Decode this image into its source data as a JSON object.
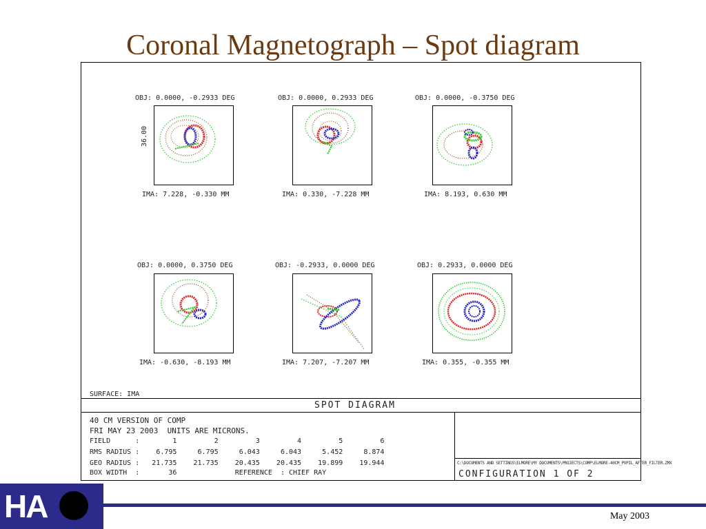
{
  "slide": {
    "title": "Coronal Magnetograph – Spot diagram",
    "footer_date": "May 2003",
    "logo": {
      "text": "HA",
      "icon": "sun-disk-icon",
      "bg_color": "#2c2a8a"
    }
  },
  "plots": [
    {
      "obj": "OBJ: 0.0000, -0.2933 DEG",
      "ima": "IMA: 7.228, -0.330 MM",
      "scale_label": "36.00"
    },
    {
      "obj": "OBJ: 0.0000, 0.2933 DEG",
      "ima": "IMA: 0.330, -7.228 MM"
    },
    {
      "obj": "OBJ: 0.0000, -0.3750 DEG",
      "ima": "IMA: 8.193, 0.630 MM"
    },
    {
      "obj": "OBJ: 0.0000, 0.3750 DEG",
      "ima": "IMA: -0.630, -8.193 MM"
    },
    {
      "obj": "OBJ: -0.2933, 0.0000 DEG",
      "ima": "IMA: 7.207, -7.207 MM"
    },
    {
      "obj": "OBJ: 0.2933, 0.0000 DEG",
      "ima": "IMA: 0.355, -0.355 MM"
    }
  ],
  "spot_colors": {
    "wave1": "#2222cc",
    "wave2": "#22cc22",
    "wave3": "#dd2222",
    "wave4": "#8b4513"
  },
  "surface_label": "SURFACE: IMA",
  "section_title": "SPOT DIAGRAM",
  "info": {
    "line1": "40 CM VERSION OF COMP",
    "line2": "FRI MAY 23 2003  UNITS ARE MICRONS.",
    "field_row": "FIELD      :        1         2         3         4         5         6",
    "rms_row": "RMS RADIUS :    6.795     6.795     6.043     6.043     5.452     8.874",
    "geo_row": "GEO RADIUS :   21.735    21.735    20.435    20.435    19.899    19.944",
    "box_row": "BOX WIDTH  :       36              REFERENCE  : CHIEF RAY"
  },
  "file_path": "C:\\DOCUMENTS AND SETTINGS\\ELMORE\\MY DOCUMENTS\\PROJECTS\\COMP\\ELMORE-40CM_PUPIL_AFTER_FILTER.ZMX",
  "configuration": "CONFIGURATION 1 OF 2"
}
